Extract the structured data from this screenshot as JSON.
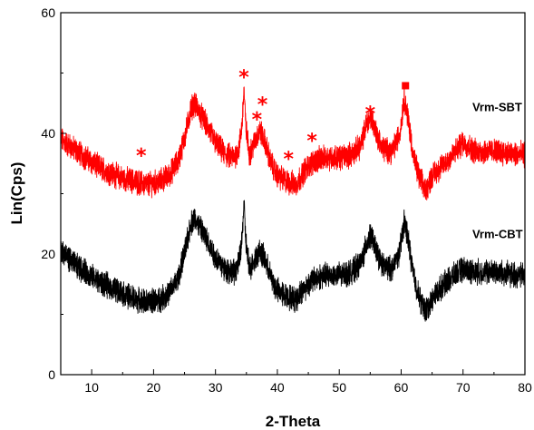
{
  "chart_data": {
    "type": "line",
    "title": "",
    "xlabel": "2-Theta",
    "ylabel": "Lin(Cps)",
    "xlim": [
      5,
      80
    ],
    "ylim": [
      0,
      60
    ],
    "x_ticks": [
      10,
      20,
      30,
      40,
      50,
      60,
      70,
      80
    ],
    "y_ticks": [
      0,
      20,
      40,
      60
    ],
    "grid": false,
    "series": [
      {
        "name": "Vrm-SBT",
        "color": "#ff0000",
        "points": [
          [
            5,
            39
          ],
          [
            7,
            37.5
          ],
          [
            9,
            36
          ],
          [
            11,
            34.5
          ],
          [
            13,
            33.5
          ],
          [
            15,
            32.5
          ],
          [
            17,
            32
          ],
          [
            19,
            31.5
          ],
          [
            21,
            32
          ],
          [
            22.5,
            33
          ],
          [
            24,
            35.5
          ],
          [
            25.2,
            40
          ],
          [
            26,
            44
          ],
          [
            26.6,
            45
          ],
          [
            27.4,
            43.5
          ],
          [
            28.5,
            41.5
          ],
          [
            30,
            38.5
          ],
          [
            31.5,
            36.5
          ],
          [
            33,
            36
          ],
          [
            33.8,
            37.5
          ],
          [
            34.3,
            41.5
          ],
          [
            34.6,
            47.5
          ],
          [
            34.9,
            41
          ],
          [
            35.5,
            36.5
          ],
          [
            36.5,
            39
          ],
          [
            37.2,
            40.5
          ],
          [
            38,
            38.5
          ],
          [
            39,
            35
          ],
          [
            40,
            33
          ],
          [
            41.5,
            32
          ],
          [
            43,
            31.5
          ],
          [
            44.5,
            34
          ],
          [
            46,
            35.5
          ],
          [
            48,
            36
          ],
          [
            50,
            36
          ],
          [
            52,
            36.5
          ],
          [
            53.5,
            38
          ],
          [
            54.5,
            42
          ],
          [
            55.2,
            42.5
          ],
          [
            56,
            40
          ],
          [
            57,
            37.5
          ],
          [
            58.5,
            37
          ],
          [
            59.8,
            40
          ],
          [
            60.5,
            46
          ],
          [
            61.2,
            42
          ],
          [
            62,
            36
          ],
          [
            63,
            32.5
          ],
          [
            64,
            30.5
          ],
          [
            65,
            33
          ],
          [
            66.5,
            34.5
          ],
          [
            68,
            36
          ],
          [
            70,
            38.5
          ],
          [
            72,
            37
          ],
          [
            74,
            37
          ],
          [
            76,
            37
          ],
          [
            78,
            36.5
          ],
          [
            80,
            36.5
          ]
        ]
      },
      {
        "name": "Vrm-CBT",
        "color": "#000000",
        "points": [
          [
            5,
            20.5
          ],
          [
            7,
            18.5
          ],
          [
            9,
            17
          ],
          [
            11,
            15.5
          ],
          [
            13,
            14.5
          ],
          [
            15,
            13.5
          ],
          [
            17,
            12.5
          ],
          [
            19,
            12
          ],
          [
            21,
            12.5
          ],
          [
            22.5,
            13.5
          ],
          [
            24,
            16
          ],
          [
            25.2,
            21
          ],
          [
            26,
            25
          ],
          [
            26.6,
            26
          ],
          [
            27.4,
            24.5
          ],
          [
            28.5,
            22.5
          ],
          [
            30,
            19.5
          ],
          [
            31.5,
            17.5
          ],
          [
            33,
            17
          ],
          [
            33.8,
            18.5
          ],
          [
            34.3,
            22.5
          ],
          [
            34.6,
            28.5
          ],
          [
            34.9,
            22
          ],
          [
            35.5,
            17.5
          ],
          [
            36.5,
            19.5
          ],
          [
            37.2,
            20.5
          ],
          [
            38,
            19
          ],
          [
            39,
            16
          ],
          [
            40,
            14
          ],
          [
            41.5,
            13
          ],
          [
            43,
            12.5
          ],
          [
            44.5,
            14.5
          ],
          [
            46,
            16
          ],
          [
            48,
            16.5
          ],
          [
            50,
            16.5
          ],
          [
            52,
            17
          ],
          [
            53.5,
            18.5
          ],
          [
            54.5,
            22
          ],
          [
            55.2,
            23
          ],
          [
            56,
            20.5
          ],
          [
            57,
            18
          ],
          [
            58.5,
            17.5
          ],
          [
            59.8,
            20.5
          ],
          [
            60.5,
            25.5
          ],
          [
            61.2,
            22
          ],
          [
            62,
            16.5
          ],
          [
            63,
            12.5
          ],
          [
            64,
            10.5
          ],
          [
            65,
            12.5
          ],
          [
            66.5,
            14.5
          ],
          [
            68,
            16
          ],
          [
            70,
            17.5
          ],
          [
            72,
            17
          ],
          [
            74,
            17
          ],
          [
            76,
            17
          ],
          [
            78,
            16.5
          ],
          [
            80,
            16.5
          ]
        ]
      }
    ],
    "annotations": [
      {
        "symbol": "*",
        "x": 18,
        "y": 37,
        "color": "#ff0000"
      },
      {
        "symbol": "*",
        "x": 34.6,
        "y": 50,
        "color": "#ff0000"
      },
      {
        "symbol": "*",
        "x": 37.6,
        "y": 45.5,
        "color": "#ff0000"
      },
      {
        "symbol": "*",
        "x": 36.7,
        "y": 43,
        "color": "#ff0000"
      },
      {
        "symbol": "*",
        "x": 41.8,
        "y": 36.5,
        "color": "#ff0000"
      },
      {
        "symbol": "*",
        "x": 45.6,
        "y": 39.5,
        "color": "#ff0000"
      },
      {
        "symbol": "*",
        "x": 55,
        "y": 44,
        "color": "#ff0000"
      },
      {
        "symbol": "■",
        "x": 60.7,
        "y": 47.9,
        "color": "#ff0000"
      }
    ],
    "series_labels": [
      {
        "text": "Vrm-SBT",
        "x": 71.5,
        "y": 44.4
      },
      {
        "text": "Vrm-CBT",
        "x": 71.5,
        "y": 23.4
      }
    ]
  }
}
